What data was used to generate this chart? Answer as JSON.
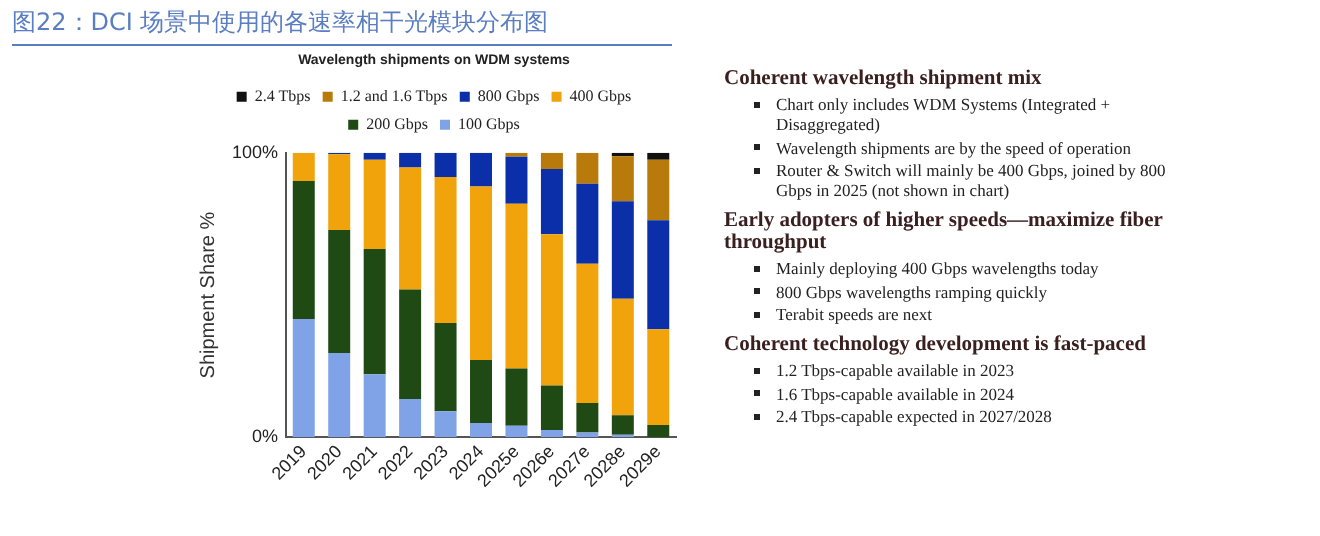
{
  "chart_data": [
    {
      "type": "bar",
      "title": "图22：DCI 场景中使用的各速率相干光模块分布图",
      "subtitle": "Wavelength shipments on WDM systems",
      "ylabel": "Shipment Share %",
      "categories": [
        "2019",
        "2020",
        "2021",
        "2022",
        "2023",
        "2024",
        "2025e",
        "2026e",
        "2027e",
        "2028e",
        "2029e"
      ],
      "series": [
        {
          "name": "100 Gbps",
          "color": "#7fa3e6",
          "values": [
            41.6,
            29.6,
            22.2,
            13.5,
            9.2,
            5,
            4.1,
            2.6,
            1.7,
            0.9,
            0
          ]
        },
        {
          "name": "200 Gbps",
          "color": "#1f4a14",
          "values": [
            48.5,
            43.3,
            44,
            38.5,
            31,
            22.2,
            20.1,
            15.6,
            10.4,
            6.9,
            4.3
          ]
        },
        {
          "name": "400 Gbps",
          "color": "#f0a30a",
          "values": [
            9.9,
            26.6,
            31.4,
            42.8,
            51.3,
            61,
            57.9,
            53.2,
            48.9,
            40.9,
            33.7
          ]
        },
        {
          "name": "800 Gbps",
          "color": "#0a2fa8",
          "values": [
            0,
            0.5,
            2.4,
            5.2,
            8.5,
            11.8,
            16.5,
            22.9,
            28.1,
            34.3,
            38.3
          ]
        },
        {
          "name": "1.2 and 1.6 Tbps",
          "color": "#b87a0a",
          "values": [
            0,
            0,
            0,
            0,
            0,
            0,
            1.4,
            5.7,
            10.9,
            15.8,
            21.3
          ]
        },
        {
          "name": "2.4 Tbps",
          "color": "#111111",
          "values": [
            0,
            0,
            0,
            0,
            0,
            0,
            0,
            0,
            0,
            1.2,
            2.4
          ]
        }
      ],
      "stacked": true,
      "ylim": [
        0,
        100
      ],
      "yticks": [
        {
          "value": 0,
          "label": "0%"
        },
        {
          "value": 100,
          "label": "100%"
        }
      ],
      "grid": false,
      "legend": "top"
    },
    {
      "type": "other",
      "title": "Coherent wavelength shipment mix",
      "annotations": [
        "Chart only includes WDM Systems (Integrated + Disaggregated)",
        "Wavelength shipments are by the speed of operation",
        "Router & Switch will mainly be 400 Gbps, joined by 800 Gbps in 2025 (not shown in chart)"
      ]
    },
    {
      "type": "other",
      "title": "Early adopters of higher speeds—maximize fiber throughput",
      "annotations": [
        "Mainly deploying 400 Gbps wavelengths today",
        "800 Gbps wavelengths ramping quickly",
        "Terabit speeds are next"
      ]
    },
    {
      "type": "other",
      "title": "Coherent technology development is fast-paced",
      "annotations": [
        "1.2 Tbps-capable available in 2023",
        "1.6 Tbps-capable available in 2024",
        "2.4 Tbps-capable expected in 2027/2028"
      ]
    }
  ]
}
